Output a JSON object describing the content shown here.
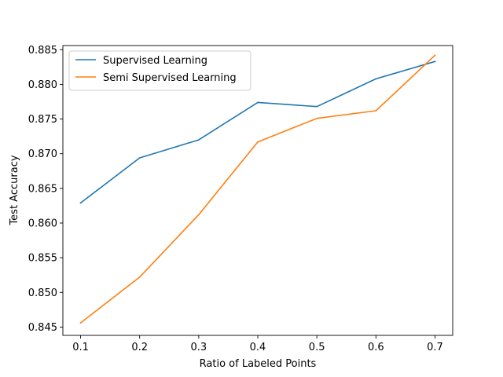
{
  "chart_data": {
    "type": "line",
    "title": "",
    "xlabel": "Ratio of Labeled Points",
    "ylabel": "Test Accuracy",
    "x": [
      0.1,
      0.2,
      0.3,
      0.4,
      0.5,
      0.6,
      0.7
    ],
    "xticks": [
      "0.1",
      "0.2",
      "0.3",
      "0.4",
      "0.5",
      "0.6",
      "0.7"
    ],
    "yticks": [
      "0.845",
      "0.850",
      "0.855",
      "0.860",
      "0.865",
      "0.870",
      "0.875",
      "0.880",
      "0.885"
    ],
    "xlim": [
      0.07,
      0.73
    ],
    "ylim": [
      0.8438,
      0.8856
    ],
    "grid": false,
    "legend_position": "top-left",
    "series": [
      {
        "name": "Supervised Learning",
        "color": "#1f77b4",
        "values": [
          0.8629,
          0.8694,
          0.872,
          0.8774,
          0.8768,
          0.8808,
          0.8833
        ]
      },
      {
        "name": "Semi Supervised Learning",
        "color": "#ff7f0e",
        "values": [
          0.8456,
          0.8522,
          0.8612,
          0.8717,
          0.8751,
          0.8762,
          0.8842
        ]
      }
    ]
  }
}
